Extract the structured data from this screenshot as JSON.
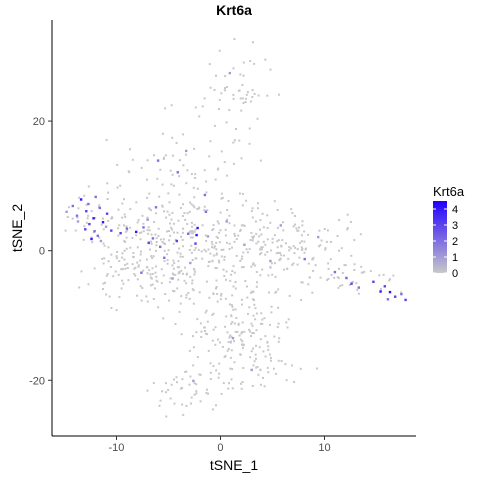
{
  "chart_data": {
    "type": "scatter",
    "title": "Krt6a",
    "xlabel": "tSNE_1",
    "ylabel": "tSNE_2",
    "xlim": [
      -16.2,
      18.8
    ],
    "ylim": [
      -28.6,
      35.6
    ],
    "x_ticks": [
      -10,
      0,
      10
    ],
    "x_tick_labels": [
      "-10",
      "0",
      "10"
    ],
    "y_ticks": [
      -20,
      0,
      20
    ],
    "y_tick_labels": [
      "-20",
      "0",
      "20"
    ],
    "grid": false,
    "legend": {
      "title": "Krt6a",
      "position": "right",
      "min": 0,
      "max": 4.5,
      "labels": [
        "4",
        "3",
        "2",
        "1",
        "0"
      ],
      "values": [
        4,
        3,
        2,
        1,
        0
      ]
    },
    "colors": {
      "low": "#c8c8c8",
      "high": "#2200ff"
    },
    "background_points": {
      "count": 950,
      "expression": 0,
      "seed": 7
    },
    "expressing_points": [
      {
        "x": -13.4,
        "y": 7.9,
        "v": 4
      },
      {
        "x": -12.9,
        "y": 6.1,
        "v": 3
      },
      {
        "x": -13.8,
        "y": 5.4,
        "v": 2
      },
      {
        "x": -12.2,
        "y": 5.0,
        "v": 4
      },
      {
        "x": -12.6,
        "y": 4.1,
        "v": 3
      },
      {
        "x": -11.6,
        "y": 6.6,
        "v": 2
      },
      {
        "x": -11.3,
        "y": 4.4,
        "v": 4
      },
      {
        "x": -12.1,
        "y": 3.0,
        "v": 2
      },
      {
        "x": -13.0,
        "y": 3.3,
        "v": 3
      },
      {
        "x": -12.4,
        "y": 1.8,
        "v": 4
      },
      {
        "x": -11.8,
        "y": 2.3,
        "v": 2
      },
      {
        "x": -14.2,
        "y": 6.9,
        "v": 2
      },
      {
        "x": -10.9,
        "y": 5.7,
        "v": 3
      },
      {
        "x": -11.0,
        "y": 3.7,
        "v": 1
      },
      {
        "x": -12.7,
        "y": 7.2,
        "v": 2
      },
      {
        "x": -13.7,
        "y": 4.5,
        "v": 1
      },
      {
        "x": -14.8,
        "y": 6.0,
        "v": 1
      },
      {
        "x": -12.0,
        "y": 8.3,
        "v": 2
      },
      {
        "x": -10.5,
        "y": 3.1,
        "v": 3
      },
      {
        "x": -11.5,
        "y": 1.5,
        "v": 1
      },
      {
        "x": -9.6,
        "y": 2.7,
        "v": 3
      },
      {
        "x": -9.0,
        "y": 3.4,
        "v": 2
      },
      {
        "x": -8.1,
        "y": 2.9,
        "v": 4
      },
      {
        "x": -7.4,
        "y": 3.6,
        "v": 2
      },
      {
        "x": -7.0,
        "y": 4.8,
        "v": 1
      },
      {
        "x": -6.9,
        "y": 1.2,
        "v": 3
      },
      {
        "x": -6.5,
        "y": 1.9,
        "v": 2
      },
      {
        "x": -5.8,
        "y": 0.6,
        "v": 2
      },
      {
        "x": -4.2,
        "y": 1.5,
        "v": 3
      },
      {
        "x": -3.1,
        "y": 2.6,
        "v": 2
      },
      {
        "x": -2.4,
        "y": 1.1,
        "v": 3
      },
      {
        "x": -2.3,
        "y": 2.4,
        "v": 4
      },
      {
        "x": -2.2,
        "y": 3.5,
        "v": 4
      },
      {
        "x": -1.2,
        "y": 2.2,
        "v": 1
      },
      {
        "x": -1.4,
        "y": 6.0,
        "v": 2
      },
      {
        "x": -6.2,
        "y": 6.7,
        "v": 2
      },
      {
        "x": -7.6,
        "y": -3.4,
        "v": 2
      },
      {
        "x": -5.4,
        "y": -1.1,
        "v": 2
      },
      {
        "x": -4.6,
        "y": -4.3,
        "v": 1
      },
      {
        "x": -2.9,
        "y": -1.9,
        "v": 1
      },
      {
        "x": -6.0,
        "y": 13.9,
        "v": 2
      },
      {
        "x": -4.1,
        "y": 12.1,
        "v": 2
      },
      {
        "x": -3.3,
        "y": 15.4,
        "v": 1
      },
      {
        "x": -1.5,
        "y": 8.6,
        "v": 2
      },
      {
        "x": 0.6,
        "y": 4.5,
        "v": 1
      },
      {
        "x": 2.3,
        "y": 0.9,
        "v": 1
      },
      {
        "x": 4.8,
        "y": -1.6,
        "v": 1
      },
      {
        "x": 8.1,
        "y": -1.3,
        "v": 2
      },
      {
        "x": 11.0,
        "y": -3.3,
        "v": 2
      },
      {
        "x": 12.1,
        "y": -4.2,
        "v": 2
      },
      {
        "x": 12.6,
        "y": -5.1,
        "v": 3
      },
      {
        "x": 13.3,
        "y": -5.7,
        "v": 2
      },
      {
        "x": 14.7,
        "y": -4.8,
        "v": 3
      },
      {
        "x": 15.4,
        "y": -6.3,
        "v": 4
      },
      {
        "x": 15.8,
        "y": -5.5,
        "v": 3
      },
      {
        "x": 16.3,
        "y": -6.4,
        "v": 4
      },
      {
        "x": 16.8,
        "y": -7.1,
        "v": 3
      },
      {
        "x": 17.4,
        "y": -6.7,
        "v": 2
      },
      {
        "x": 16.1,
        "y": -7.5,
        "v": 2
      },
      {
        "x": 17.8,
        "y": -7.6,
        "v": 3
      },
      {
        "x": 1.2,
        "y": -13.5,
        "v": 1
      },
      {
        "x": 3.0,
        "y": -18.4,
        "v": 1
      },
      {
        "x": -2.6,
        "y": -20.1,
        "v": 1
      },
      {
        "x": 0.9,
        "y": 27.4,
        "v": 1
      },
      {
        "x": 5.8,
        "y": 3.9,
        "v": 1
      },
      {
        "x": 9.4,
        "y": 2.1,
        "v": 1
      }
    ]
  }
}
